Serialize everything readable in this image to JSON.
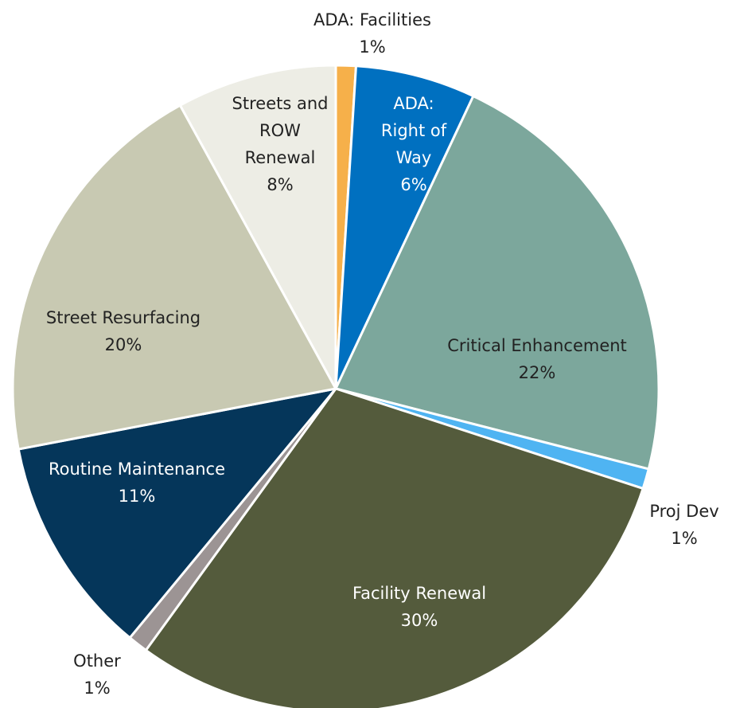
{
  "chart_data": {
    "type": "pie",
    "categories": [
      "ADA: Facilities",
      "ADA: Right of Way",
      "Critical Enhancement",
      "Proj Dev",
      "Facility Renewal",
      "Other",
      "Routine Maintenance",
      "Street Resurfacing",
      "Streets and ROW Renewal"
    ],
    "values": [
      1,
      6,
      22,
      1,
      30,
      1,
      11,
      20,
      8
    ],
    "value_labels": [
      "1%",
      "6%",
      "22%",
      "1%",
      "30%",
      "1%",
      "11%",
      "20%",
      "8%"
    ],
    "colors": [
      "#F6B04A",
      "#0070C0",
      "#7CA79C",
      "#4FB4F2",
      "#545B3C",
      "#9C9494",
      "#05365A",
      "#C8C9B2",
      "#EDEDE5"
    ]
  }
}
